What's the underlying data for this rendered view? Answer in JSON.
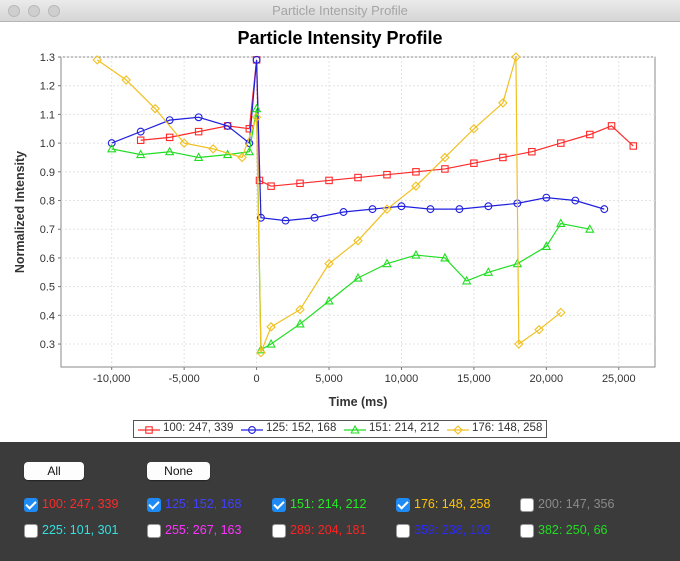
{
  "window": {
    "title": "Particle Intensity Profile"
  },
  "chart_data": {
    "type": "line",
    "title": "Particle Intensity Profile",
    "xlabel": "Time (ms)",
    "ylabel": "Normalized Intensity",
    "xlim": [
      -13500,
      27500
    ],
    "ylim": [
      0.22,
      1.3
    ],
    "xticks": [
      "-10,000",
      "-5,000",
      "0",
      "5,000",
      "10,000",
      "15,000",
      "20,000",
      "25,000"
    ],
    "xtick_values": [
      -10000,
      -5000,
      0,
      5000,
      10000,
      15000,
      20000,
      25000
    ],
    "yticks": [
      "0.3",
      "0.4",
      "0.5",
      "0.6",
      "0.7",
      "0.8",
      "0.9",
      "1.0",
      "1.1",
      "1.2",
      "1.3"
    ],
    "ytick_values": [
      0.3,
      0.4,
      0.5,
      0.6,
      0.7,
      0.8,
      0.9,
      1.0,
      1.1,
      1.2,
      1.3
    ],
    "grid": true,
    "legend_position": "bottom",
    "series": [
      {
        "name": "100: 247, 339",
        "color": "#ff2a2a",
        "marker": "square",
        "x": [
          -8000,
          -6000,
          -4000,
          -2000,
          -500,
          0,
          200,
          1000,
          3000,
          5000,
          7000,
          9000,
          11000,
          13000,
          15000,
          17000,
          19000,
          21000,
          23000,
          24500,
          26000
        ],
        "y": [
          1.01,
          1.02,
          1.04,
          1.06,
          1.05,
          1.29,
          0.87,
          0.85,
          0.86,
          0.87,
          0.88,
          0.89,
          0.9,
          0.91,
          0.93,
          0.95,
          0.97,
          1.0,
          1.03,
          1.06,
          0.99
        ]
      },
      {
        "name": "125: 152, 168",
        "color": "#2020e0",
        "marker": "circle",
        "x": [
          -10000,
          -8000,
          -6000,
          -4000,
          -2000,
          -500,
          0,
          300,
          2000,
          4000,
          6000,
          8000,
          10000,
          12000,
          14000,
          16000,
          18000,
          20000,
          22000,
          24000
        ],
        "y": [
          1.0,
          1.04,
          1.08,
          1.09,
          1.06,
          1.0,
          1.29,
          0.74,
          0.73,
          0.74,
          0.76,
          0.77,
          0.78,
          0.77,
          0.77,
          0.78,
          0.79,
          0.81,
          0.8,
          0.77
        ]
      },
      {
        "name": "151: 214, 212",
        "color": "#22dd22",
        "marker": "triangle",
        "x": [
          -10000,
          -8000,
          -6000,
          -4000,
          -2000,
          -500,
          0,
          300,
          1000,
          3000,
          5000,
          7000,
          9000,
          11000,
          13000,
          14500,
          16000,
          18000,
          20000,
          21000,
          23000
        ],
        "y": [
          0.98,
          0.96,
          0.97,
          0.95,
          0.96,
          0.97,
          1.12,
          0.28,
          0.3,
          0.37,
          0.45,
          0.53,
          0.58,
          0.61,
          0.6,
          0.52,
          0.55,
          0.58,
          0.64,
          0.72,
          0.7
        ]
      },
      {
        "name": "176: 148, 258",
        "color": "#f0c020",
        "marker": "diamond",
        "x": [
          -11000,
          -9000,
          -7000,
          -5000,
          -3000,
          -1000,
          0,
          300,
          1000,
          3000,
          5000,
          7000,
          9000,
          11000,
          13000,
          15000,
          17000,
          17900,
          18100,
          19500,
          21000
        ],
        "y": [
          1.29,
          1.22,
          1.12,
          1.0,
          0.98,
          0.95,
          1.09,
          0.27,
          0.36,
          0.42,
          0.58,
          0.66,
          0.77,
          0.85,
          0.95,
          1.05,
          1.14,
          1.32,
          0.3,
          0.35,
          0.41
        ]
      }
    ]
  },
  "legend": [
    {
      "label": "100: 247, 339",
      "color": "#ff2a2a",
      "marker": "square"
    },
    {
      "label": "125: 152, 168",
      "color": "#2020e0",
      "marker": "circle"
    },
    {
      "label": "151: 214, 212",
      "color": "#22dd22",
      "marker": "triangle"
    },
    {
      "label": "176: 148, 258",
      "color": "#f0c020",
      "marker": "diamond"
    }
  ],
  "controls": {
    "all_label": "All",
    "none_label": "None",
    "particles": [
      {
        "label": "100: 247, 339",
        "checked": true,
        "color": "#ff2a2a"
      },
      {
        "label": "125: 152, 168",
        "checked": true,
        "color": "#4040ff"
      },
      {
        "label": "151: 214, 212",
        "checked": true,
        "color": "#22ee22"
      },
      {
        "label": "176: 148, 258",
        "checked": true,
        "color": "#ffc400"
      },
      {
        "label": "200: 147, 356",
        "checked": false,
        "color": "#8a8a8a"
      },
      {
        "label": "225: 101, 301",
        "checked": false,
        "color": "#33e0e0"
      },
      {
        "label": "255: 267, 163",
        "checked": false,
        "color": "#ff33ff"
      },
      {
        "label": "289: 204, 181",
        "checked": false,
        "color": "#ff2222"
      },
      {
        "label": "359: 238, 102",
        "checked": false,
        "color": "#2a2aff"
      },
      {
        "label": "382: 250, 66",
        "checked": false,
        "color": "#22dd22"
      }
    ]
  }
}
